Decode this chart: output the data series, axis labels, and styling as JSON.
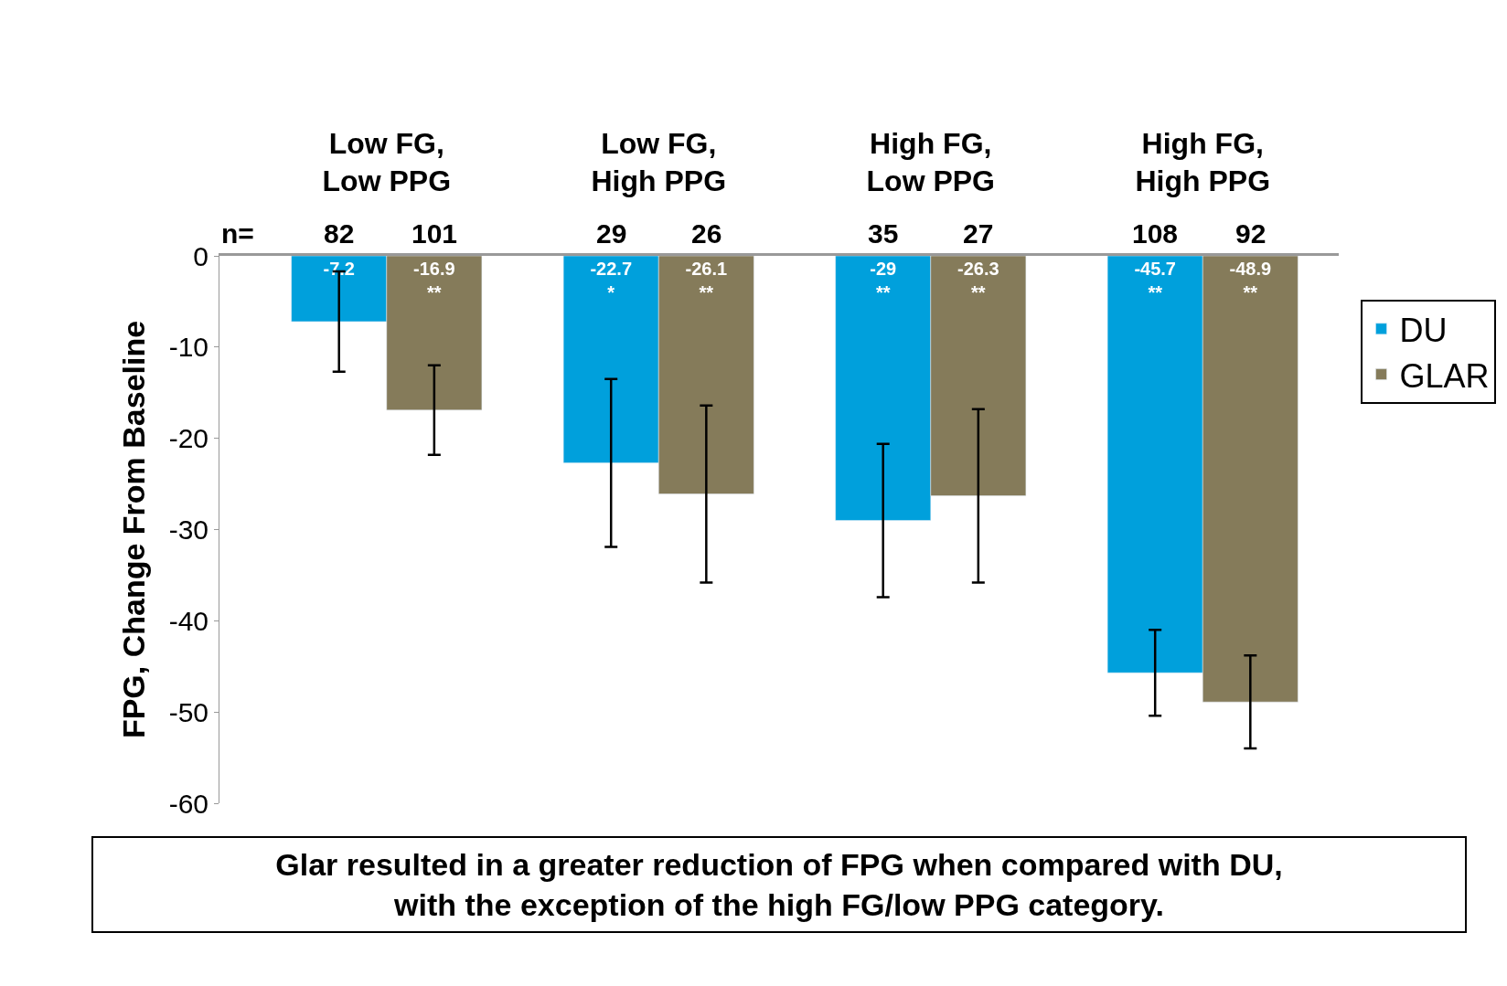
{
  "chart_data": {
    "type": "bar",
    "ylabel": "FPG, Change From Baseline",
    "categories": [
      "Low FG,\nLow PPG",
      "Low FG,\nHigh PPG",
      "High FG,\nLow PPG",
      "High FG,\nHigh PPG"
    ],
    "series": [
      {
        "name": "DU",
        "color": "#00a0dc",
        "values": [
          -7.2,
          -22.7,
          -29,
          -45.7
        ],
        "errors": [
          5.5,
          9.2,
          8.4,
          4.7
        ],
        "value_labels": [
          "-7.2",
          "-22.7\n*",
          "-29\n**",
          "-45.7\n**"
        ]
      },
      {
        "name": "GLAR",
        "color": "#857b5a",
        "values": [
          -16.9,
          -26.1,
          -26.3,
          -48.9
        ],
        "errors": [
          4.9,
          9.7,
          9.5,
          5.1
        ],
        "value_labels": [
          "-16.9\n**",
          "-26.1\n**",
          "-26.3\n**",
          "-48.9\n**"
        ]
      }
    ],
    "ylim": [
      -60,
      0
    ],
    "yticks": [
      -60,
      -50,
      -40,
      -30,
      -20,
      -10,
      0
    ],
    "legend": "top right",
    "annotations": [
      "n=",
      "82",
      "29",
      "35",
      "108",
      "101",
      "26",
      "27",
      "92",
      "Glar resulted in a greater reduction of FPG when compared with DU,\nwith the exception of the high FG/low PPG category."
    ]
  }
}
